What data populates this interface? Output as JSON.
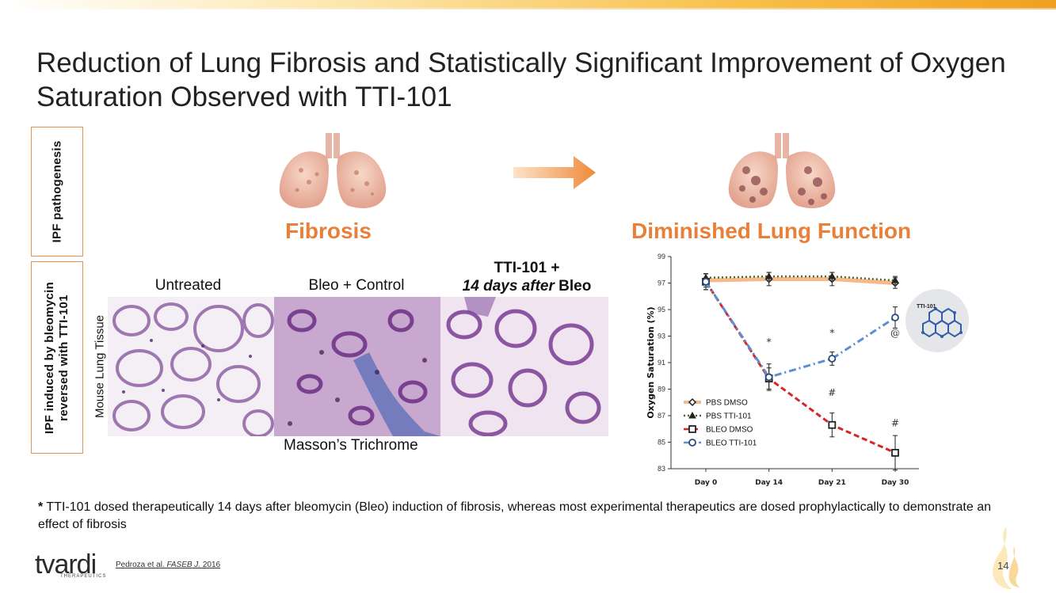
{
  "title": "Reduction of Lung Fibrosis and Statistically Significant Improvement of Oxygen Saturation Observed with TTI-101",
  "side_labels": {
    "top": "IPF pathogenesis",
    "bottom_line1": "IPF induced by bleomycin",
    "bottom_line2": "reversed with TTI-101"
  },
  "headings": {
    "fibrosis": "Fibrosis",
    "diminished": "Diminished Lung Function"
  },
  "histology": {
    "y_label": "Mouse Lung Tissue",
    "columns": {
      "untreated": "Untreated",
      "bleo": "Bleo + Control",
      "tti_line1": "TTI-101 +",
      "tti_line2_italic": "14 days after",
      "tti_line2_rest": " Bleo"
    },
    "caption": "Masson’s Trichrome"
  },
  "chart_data": {
    "type": "line",
    "ylabel": "Oxygen Saturation (%)",
    "categories": [
      "Day 0",
      "Day 14",
      "Day 21",
      "Day 30"
    ],
    "ylim": [
      83,
      99
    ],
    "yticks": [
      83,
      85,
      87,
      89,
      91,
      93,
      95,
      97,
      99
    ],
    "series": [
      {
        "name": "PBS DMSO",
        "values": [
          97.2,
          97.3,
          97.3,
          97.0
        ],
        "errors": [
          0.5,
          0.5,
          0.5,
          0.4
        ],
        "color": "#f5b98a",
        "marker": "diamond",
        "dash": "solid"
      },
      {
        "name": "PBS TTI-101",
        "values": [
          97.4,
          97.5,
          97.5,
          97.2
        ],
        "errors": [
          0.3,
          0.3,
          0.3,
          0.3
        ],
        "color": "#4a6b2a",
        "marker": "triangle",
        "dash": "dotted"
      },
      {
        "name": "BLEO DMSO",
        "values": [
          97.1,
          89.8,
          86.3,
          84.2
        ],
        "errors": [
          0.6,
          0.8,
          0.9,
          1.3
        ],
        "color": "#d62728",
        "marker": "square",
        "dash": "dashed"
      },
      {
        "name": "BLEO TTI-101",
        "values": [
          97.1,
          89.9,
          91.3,
          94.4
        ],
        "errors": [
          0.6,
          1.0,
          0.5,
          0.8
        ],
        "color": "#5b8fd0",
        "marker": "circle",
        "dash": "dashdot"
      }
    ],
    "annotations": [
      {
        "text": "*",
        "x": "Day 14",
        "y": 92.3
      },
      {
        "text": "*",
        "x": "Day 21",
        "y": 93.0
      },
      {
        "text": "@",
        "x": "Day 30",
        "y": 93.0
      },
      {
        "text": "#",
        "x": "Day 21",
        "y": 88.5
      },
      {
        "text": "#",
        "x": "Day 30",
        "y": 86.2
      }
    ],
    "legend_position": "bottom-left",
    "badge_label": "TTI-101"
  },
  "footnote": {
    "star": "*",
    "text": " TTI-101 dosed therapeutically 14 days after bleomycin (Bleo) induction of fibrosis, whereas most experimental therapeutics are dosed prophylactically to demonstrate an effect of fibrosis"
  },
  "logo": {
    "word": "tvardi",
    "sub": "THERAPEUTICS"
  },
  "citation": {
    "pre": "Pedroza et al. ",
    "journal": "FASEB J.",
    "year": " 2016"
  },
  "page_number": "14",
  "colors": {
    "accent": "#e8803a",
    "box_border": "#e8914a"
  }
}
